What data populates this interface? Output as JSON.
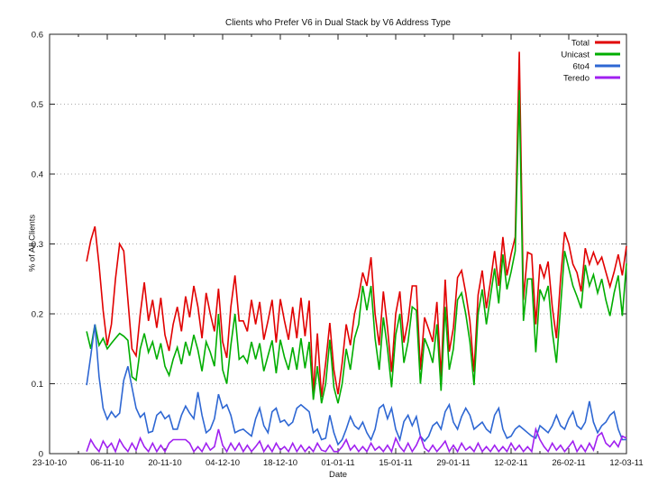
{
  "title": "Clients who Prefer V6 in Dual Stack by V6 Address Type",
  "xlabel": "Date",
  "ylabel": "% of All Clients",
  "chart_data": {
    "type": "line",
    "title": "Clients who Prefer V6 in Dual Stack by V6 Address Type",
    "xlabel": "Date",
    "ylabel": "% of All Clients",
    "ylim": [
      0,
      0.6
    ],
    "ytick_labels": [
      "0",
      "0.1",
      "0.2",
      "0.3",
      "0.4",
      "0.5",
      "0.6"
    ],
    "ytick_values": [
      0,
      0.1,
      0.2,
      0.3,
      0.4,
      0.5,
      0.6
    ],
    "grid": "horizontal-dotted",
    "grid_color": "#aaaaaa",
    "axis_color": "#222222",
    "legend_position": "top-right-inside",
    "x_day_range": [
      0,
      140
    ],
    "xtick_days": [
      0,
      14,
      28,
      42,
      56,
      70,
      84,
      98,
      112,
      126,
      140
    ],
    "xtick_labels": [
      "23-10-10",
      "06-11-10",
      "20-11-10",
      "04-12-10",
      "18-12-10",
      "01-01-11",
      "15-01-11",
      "29-01-11",
      "12-02-11",
      "26-02-11",
      "12-03-11"
    ],
    "xtick_minor_days": [
      7,
      21,
      35,
      49,
      63,
      77,
      91,
      105,
      119,
      133
    ],
    "x_start_day": 9,
    "x_step_days": 1,
    "series": [
      {
        "name": "Total",
        "color": "#e10000",
        "values": [
          0.275,
          0.305,
          0.325,
          0.27,
          0.205,
          0.155,
          0.185,
          0.25,
          0.3,
          0.29,
          0.22,
          0.15,
          0.14,
          0.2,
          0.245,
          0.19,
          0.22,
          0.18,
          0.223,
          0.17,
          0.147,
          0.185,
          0.21,
          0.175,
          0.225,
          0.195,
          0.24,
          0.21,
          0.165,
          0.23,
          0.2,
          0.175,
          0.236,
          0.16,
          0.137,
          0.21,
          0.255,
          0.19,
          0.19,
          0.175,
          0.22,
          0.185,
          0.217,
          0.163,
          0.19,
          0.22,
          0.159,
          0.221,
          0.19,
          0.163,
          0.21,
          0.165,
          0.223,
          0.168,
          0.219,
          0.088,
          0.172,
          0.081,
          0.13,
          0.187,
          0.12,
          0.085,
          0.13,
          0.185,
          0.155,
          0.2,
          0.225,
          0.259,
          0.24,
          0.281,
          0.2,
          0.155,
          0.232,
          0.18,
          0.117,
          0.2,
          0.232,
          0.159,
          0.19,
          0.24,
          0.24,
          0.12,
          0.195,
          0.178,
          0.16,
          0.217,
          0.11,
          0.249,
          0.146,
          0.18,
          0.252,
          0.262,
          0.23,
          0.19,
          0.117,
          0.227,
          0.262,
          0.208,
          0.246,
          0.29,
          0.24,
          0.31,
          0.255,
          0.285,
          0.31,
          0.575,
          0.22,
          0.288,
          0.285,
          0.185,
          0.271,
          0.252,
          0.275,
          0.21,
          0.165,
          0.25,
          0.317,
          0.3,
          0.271,
          0.259,
          0.232,
          0.294,
          0.271,
          0.288,
          0.271,
          0.281,
          0.26,
          0.239,
          0.26,
          0.285,
          0.255,
          0.297
        ]
      },
      {
        "name": "Unicast",
        "color": "#00ad00",
        "values": [
          0.175,
          0.15,
          0.185,
          0.155,
          0.165,
          0.15,
          0.158,
          0.165,
          0.172,
          0.168,
          0.162,
          0.11,
          0.105,
          0.15,
          0.172,
          0.145,
          0.16,
          0.135,
          0.158,
          0.125,
          0.112,
          0.135,
          0.152,
          0.128,
          0.16,
          0.14,
          0.17,
          0.148,
          0.118,
          0.16,
          0.145,
          0.125,
          0.2,
          0.12,
          0.1,
          0.155,
          0.2,
          0.135,
          0.14,
          0.13,
          0.16,
          0.135,
          0.158,
          0.118,
          0.14,
          0.162,
          0.115,
          0.163,
          0.138,
          0.12,
          0.152,
          0.12,
          0.165,
          0.122,
          0.16,
          0.077,
          0.125,
          0.072,
          0.1,
          0.163,
          0.095,
          0.072,
          0.1,
          0.15,
          0.12,
          0.165,
          0.185,
          0.24,
          0.205,
          0.24,
          0.165,
          0.12,
          0.195,
          0.15,
          0.095,
          0.17,
          0.2,
          0.13,
          0.16,
          0.21,
          0.205,
          0.1,
          0.165,
          0.15,
          0.13,
          0.185,
          0.09,
          0.21,
          0.12,
          0.15,
          0.22,
          0.23,
          0.2,
          0.16,
          0.098,
          0.2,
          0.235,
          0.185,
          0.225,
          0.265,
          0.215,
          0.285,
          0.235,
          0.26,
          0.29,
          0.52,
          0.19,
          0.25,
          0.25,
          0.145,
          0.235,
          0.22,
          0.24,
          0.175,
          0.13,
          0.21,
          0.29,
          0.265,
          0.24,
          0.225,
          0.208,
          0.27,
          0.24,
          0.256,
          0.23,
          0.25,
          0.22,
          0.197,
          0.23,
          0.255,
          0.197,
          0.272
        ]
      },
      {
        "name": "6to4",
        "color": "#2e67d3",
        "values": [
          0.098,
          0.14,
          0.185,
          0.11,
          0.065,
          0.049,
          0.06,
          0.052,
          0.058,
          0.105,
          0.125,
          0.095,
          0.065,
          0.052,
          0.058,
          0.03,
          0.032,
          0.055,
          0.06,
          0.05,
          0.055,
          0.035,
          0.035,
          0.055,
          0.068,
          0.058,
          0.05,
          0.088,
          0.055,
          0.03,
          0.035,
          0.05,
          0.085,
          0.065,
          0.07,
          0.055,
          0.03,
          0.033,
          0.035,
          0.03,
          0.025,
          0.05,
          0.065,
          0.04,
          0.03,
          0.06,
          0.065,
          0.045,
          0.048,
          0.04,
          0.045,
          0.065,
          0.07,
          0.065,
          0.06,
          0.03,
          0.035,
          0.02,
          0.022,
          0.055,
          0.03,
          0.013,
          0.02,
          0.035,
          0.053,
          0.04,
          0.035,
          0.045,
          0.03,
          0.02,
          0.035,
          0.065,
          0.07,
          0.05,
          0.065,
          0.035,
          0.02,
          0.046,
          0.055,
          0.04,
          0.053,
          0.025,
          0.018,
          0.025,
          0.04,
          0.045,
          0.035,
          0.06,
          0.07,
          0.045,
          0.035,
          0.053,
          0.065,
          0.055,
          0.035,
          0.04,
          0.045,
          0.035,
          0.03,
          0.055,
          0.065,
          0.035,
          0.022,
          0.025,
          0.035,
          0.04,
          0.035,
          0.03,
          0.025,
          0.022,
          0.04,
          0.035,
          0.03,
          0.04,
          0.055,
          0.04,
          0.035,
          0.05,
          0.06,
          0.04,
          0.035,
          0.045,
          0.075,
          0.045,
          0.03,
          0.04,
          0.045,
          0.055,
          0.06,
          0.035,
          0.02,
          0.02
        ]
      },
      {
        "name": "Teredo",
        "color": "#a020f0",
        "values": [
          0.003,
          0.02,
          0.01,
          0.003,
          0.018,
          0.008,
          0.015,
          0.003,
          0.02,
          0.01,
          0.003,
          0.015,
          0.005,
          0.022,
          0.01,
          0.003,
          0.015,
          0.003,
          0.012,
          0.003,
          0.015,
          0.02,
          0.02,
          0.02,
          0.02,
          0.015,
          0.003,
          0.01,
          0.003,
          0.015,
          0.005,
          0.01,
          0.035,
          0.012,
          0.003,
          0.015,
          0.005,
          0.015,
          0.003,
          0.012,
          0.003,
          0.01,
          0.018,
          0.003,
          0.012,
          0.003,
          0.015,
          0.005,
          0.01,
          0.003,
          0.015,
          0.003,
          0.012,
          0.003,
          0.01,
          0.003,
          0.015,
          0.005,
          0.003,
          0.012,
          0.003,
          0.003,
          0.01,
          0.02,
          0.005,
          0.012,
          0.003,
          0.01,
          0.003,
          0.015,
          0.005,
          0.01,
          0.003,
          0.012,
          0.003,
          0.022,
          0.01,
          0.003,
          0.015,
          0.003,
          0.012,
          0.025,
          0.008,
          0.003,
          0.012,
          0.003,
          0.01,
          0.018,
          0.003,
          0.012,
          0.003,
          0.015,
          0.005,
          0.01,
          0.003,
          0.015,
          0.003,
          0.01,
          0.003,
          0.012,
          0.003,
          0.01,
          0.003,
          0.015,
          0.005,
          0.012,
          0.003,
          0.01,
          0.003,
          0.035,
          0.02,
          0.01,
          0.003,
          0.015,
          0.005,
          0.012,
          0.003,
          0.01,
          0.018,
          0.003,
          0.012,
          0.003,
          0.015,
          0.005,
          0.025,
          0.03,
          0.015,
          0.01,
          0.018,
          0.01,
          0.025,
          0.022
        ]
      }
    ]
  }
}
